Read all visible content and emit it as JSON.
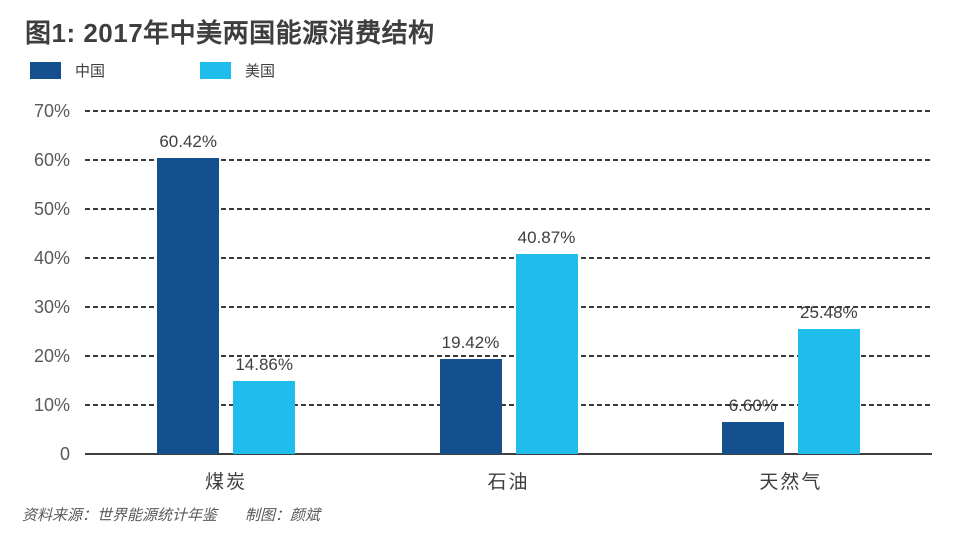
{
  "title": "图1: 2017年中美两国能源消费结构",
  "legend": [
    {
      "label": "中国",
      "color": "#14508D"
    },
    {
      "label": "美国",
      "color": "#1FBDEC"
    }
  ],
  "chart_data": {
    "type": "bar",
    "title": "图1: 2017年中美两国能源消费结构",
    "categories": [
      "煤炭",
      "石油",
      "天然气"
    ],
    "series": [
      {
        "name": "中国",
        "color": "#14508D",
        "values": [
          60.42,
          19.42,
          6.6
        ],
        "labels": [
          "60.42%",
          "19.42%",
          "6.60%"
        ]
      },
      {
        "name": "美国",
        "color": "#1FBDEC",
        "values": [
          14.86,
          40.87,
          25.48
        ],
        "labels": [
          "14.86%",
          "40.87%",
          "25.48%"
        ]
      }
    ],
    "xlabel": "",
    "ylabel": "",
    "ylim": [
      0,
      70
    ],
    "ytick_step": 10,
    "ytick_labels": [
      "0",
      "10%",
      "20%",
      "30%",
      "40%",
      "50%",
      "60%",
      "70%"
    ],
    "grid": "horizontal-dashed",
    "legend_position": "top-left"
  },
  "footer": {
    "source": "资料来源：世界能源统计年鉴",
    "credit": "制图：颜斌"
  }
}
